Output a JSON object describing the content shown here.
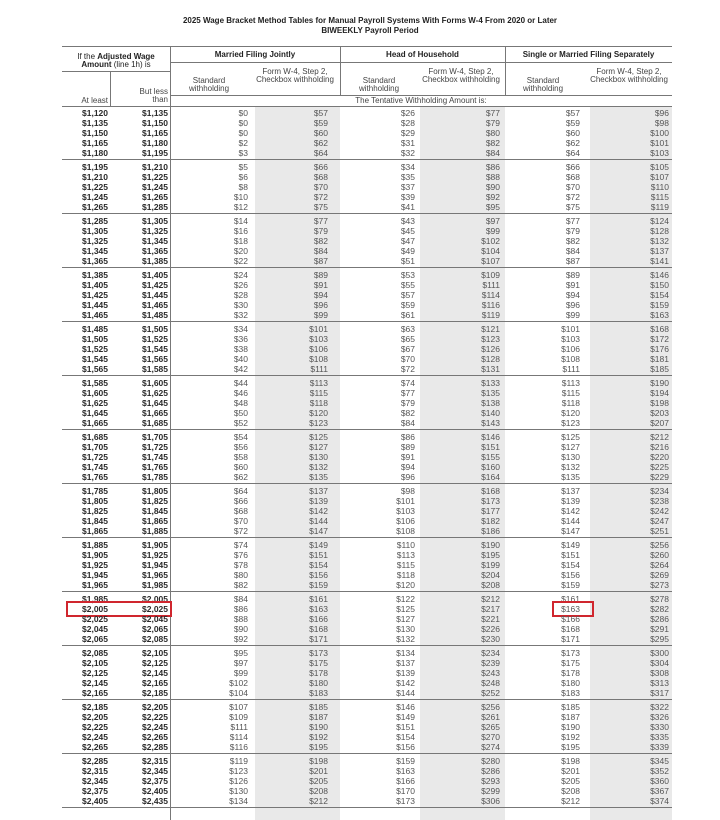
{
  "title": "2025 Wage Bracket Method Tables for Manual Payroll Systems With Forms W-4 From 2020 or Later",
  "subtitle": "BIWEEKLY Payroll Period",
  "header": {
    "wage_prefix": "If the ",
    "wage_bold": "Adjusted Wage Amount",
    "wage_suffix": " (line 1h) is",
    "at_least": "At least",
    "but_less_than": "But less than",
    "groups": [
      "Married Filing Jointly",
      "Head of Household",
      "Single or Married Filing Separately"
    ],
    "standard": "Standard withholding",
    "checkbox": "Form W-4, Step 2, Checkbox withholding",
    "tentative": "The Tentative Withholding Amount is:"
  },
  "colors": {
    "highlight": "#d0262e",
    "shade": "#e9e9e9"
  },
  "highlights": [
    {
      "group": 9,
      "row": 1,
      "columns": [
        0,
        1
      ]
    },
    {
      "group": 9,
      "row": 1,
      "columns": [
        6
      ]
    }
  ],
  "rows": [
    [
      [
        "$1,120",
        "$1,135",
        "$0",
        "$57",
        "$26",
        "$77",
        "$57",
        "$96"
      ],
      [
        "$1,135",
        "$1,150",
        "$0",
        "$59",
        "$28",
        "$79",
        "$59",
        "$98"
      ],
      [
        "$1,150",
        "$1,165",
        "$0",
        "$60",
        "$29",
        "$80",
        "$60",
        "$100"
      ],
      [
        "$1,165",
        "$1,180",
        "$2",
        "$62",
        "$31",
        "$82",
        "$62",
        "$101"
      ],
      [
        "$1,180",
        "$1,195",
        "$3",
        "$64",
        "$32",
        "$84",
        "$64",
        "$103"
      ]
    ],
    [
      [
        "$1,195",
        "$1,210",
        "$5",
        "$66",
        "$34",
        "$86",
        "$66",
        "$105"
      ],
      [
        "$1,210",
        "$1,225",
        "$6",
        "$68",
        "$35",
        "$88",
        "$68",
        "$107"
      ],
      [
        "$1,225",
        "$1,245",
        "$8",
        "$70",
        "$37",
        "$90",
        "$70",
        "$110"
      ],
      [
        "$1,245",
        "$1,265",
        "$10",
        "$72",
        "$39",
        "$92",
        "$72",
        "$115"
      ],
      [
        "$1,265",
        "$1,285",
        "$12",
        "$75",
        "$41",
        "$95",
        "$75",
        "$119"
      ]
    ],
    [
      [
        "$1,285",
        "$1,305",
        "$14",
        "$77",
        "$43",
        "$97",
        "$77",
        "$124"
      ],
      [
        "$1,305",
        "$1,325",
        "$16",
        "$79",
        "$45",
        "$99",
        "$79",
        "$128"
      ],
      [
        "$1,325",
        "$1,345",
        "$18",
        "$82",
        "$47",
        "$102",
        "$82",
        "$132"
      ],
      [
        "$1,345",
        "$1,365",
        "$20",
        "$84",
        "$49",
        "$104",
        "$84",
        "$137"
      ],
      [
        "$1,365",
        "$1,385",
        "$22",
        "$87",
        "$51",
        "$107",
        "$87",
        "$141"
      ]
    ],
    [
      [
        "$1,385",
        "$1,405",
        "$24",
        "$89",
        "$53",
        "$109",
        "$89",
        "$146"
      ],
      [
        "$1,405",
        "$1,425",
        "$26",
        "$91",
        "$55",
        "$111",
        "$91",
        "$150"
      ],
      [
        "$1,425",
        "$1,445",
        "$28",
        "$94",
        "$57",
        "$114",
        "$94",
        "$154"
      ],
      [
        "$1,445",
        "$1,465",
        "$30",
        "$96",
        "$59",
        "$116",
        "$96",
        "$159"
      ],
      [
        "$1,465",
        "$1,485",
        "$32",
        "$99",
        "$61",
        "$119",
        "$99",
        "$163"
      ]
    ],
    [
      [
        "$1,485",
        "$1,505",
        "$34",
        "$101",
        "$63",
        "$121",
        "$101",
        "$168"
      ],
      [
        "$1,505",
        "$1,525",
        "$36",
        "$103",
        "$65",
        "$123",
        "$103",
        "$172"
      ],
      [
        "$1,525",
        "$1,545",
        "$38",
        "$106",
        "$67",
        "$126",
        "$106",
        "$176"
      ],
      [
        "$1,545",
        "$1,565",
        "$40",
        "$108",
        "$70",
        "$128",
        "$108",
        "$181"
      ],
      [
        "$1,565",
        "$1,585",
        "$42",
        "$111",
        "$72",
        "$131",
        "$111",
        "$185"
      ]
    ],
    [
      [
        "$1,585",
        "$1,605",
        "$44",
        "$113",
        "$74",
        "$133",
        "$113",
        "$190"
      ],
      [
        "$1,605",
        "$1,625",
        "$46",
        "$115",
        "$77",
        "$135",
        "$115",
        "$194"
      ],
      [
        "$1,625",
        "$1,645",
        "$48",
        "$118",
        "$79",
        "$138",
        "$118",
        "$198"
      ],
      [
        "$1,645",
        "$1,665",
        "$50",
        "$120",
        "$82",
        "$140",
        "$120",
        "$203"
      ],
      [
        "$1,665",
        "$1,685",
        "$52",
        "$123",
        "$84",
        "$143",
        "$123",
        "$207"
      ]
    ],
    [
      [
        "$1,685",
        "$1,705",
        "$54",
        "$125",
        "$86",
        "$146",
        "$125",
        "$212"
      ],
      [
        "$1,705",
        "$1,725",
        "$56",
        "$127",
        "$89",
        "$151",
        "$127",
        "$216"
      ],
      [
        "$1,725",
        "$1,745",
        "$58",
        "$130",
        "$91",
        "$155",
        "$130",
        "$220"
      ],
      [
        "$1,745",
        "$1,765",
        "$60",
        "$132",
        "$94",
        "$160",
        "$132",
        "$225"
      ],
      [
        "$1,765",
        "$1,785",
        "$62",
        "$135",
        "$96",
        "$164",
        "$135",
        "$229"
      ]
    ],
    [
      [
        "$1,785",
        "$1,805",
        "$64",
        "$137",
        "$98",
        "$168",
        "$137",
        "$234"
      ],
      [
        "$1,805",
        "$1,825",
        "$66",
        "$139",
        "$101",
        "$173",
        "$139",
        "$238"
      ],
      [
        "$1,825",
        "$1,845",
        "$68",
        "$142",
        "$103",
        "$177",
        "$142",
        "$242"
      ],
      [
        "$1,845",
        "$1,865",
        "$70",
        "$144",
        "$106",
        "$182",
        "$144",
        "$247"
      ],
      [
        "$1,865",
        "$1,885",
        "$72",
        "$147",
        "$108",
        "$186",
        "$147",
        "$251"
      ]
    ],
    [
      [
        "$1,885",
        "$1,905",
        "$74",
        "$149",
        "$110",
        "$190",
        "$149",
        "$256"
      ],
      [
        "$1,905",
        "$1,925",
        "$76",
        "$151",
        "$113",
        "$195",
        "$151",
        "$260"
      ],
      [
        "$1,925",
        "$1,945",
        "$78",
        "$154",
        "$115",
        "$199",
        "$154",
        "$264"
      ],
      [
        "$1,945",
        "$1,965",
        "$80",
        "$156",
        "$118",
        "$204",
        "$156",
        "$269"
      ],
      [
        "$1,965",
        "$1,985",
        "$82",
        "$159",
        "$120",
        "$208",
        "$159",
        "$273"
      ]
    ],
    [
      [
        "$1,985",
        "$2,005",
        "$84",
        "$161",
        "$122",
        "$212",
        "$161",
        "$278"
      ],
      [
        "$2,005",
        "$2,025",
        "$86",
        "$163",
        "$125",
        "$217",
        "$163",
        "$282"
      ],
      [
        "$2,025",
        "$2,045",
        "$88",
        "$166",
        "$127",
        "$221",
        "$166",
        "$286"
      ],
      [
        "$2,045",
        "$2,065",
        "$90",
        "$168",
        "$130",
        "$226",
        "$168",
        "$291"
      ],
      [
        "$2,065",
        "$2,085",
        "$92",
        "$171",
        "$132",
        "$230",
        "$171",
        "$295"
      ]
    ],
    [
      [
        "$2,085",
        "$2,105",
        "$95",
        "$173",
        "$134",
        "$234",
        "$173",
        "$300"
      ],
      [
        "$2,105",
        "$2,125",
        "$97",
        "$175",
        "$137",
        "$239",
        "$175",
        "$304"
      ],
      [
        "$2,125",
        "$2,145",
        "$99",
        "$178",
        "$139",
        "$243",
        "$178",
        "$308"
      ],
      [
        "$2,145",
        "$2,165",
        "$102",
        "$180",
        "$142",
        "$248",
        "$180",
        "$313"
      ],
      [
        "$2,165",
        "$2,185",
        "$104",
        "$183",
        "$144",
        "$252",
        "$183",
        "$317"
      ]
    ],
    [
      [
        "$2,185",
        "$2,205",
        "$107",
        "$185",
        "$146",
        "$256",
        "$185",
        "$322"
      ],
      [
        "$2,205",
        "$2,225",
        "$109",
        "$187",
        "$149",
        "$261",
        "$187",
        "$326"
      ],
      [
        "$2,225",
        "$2,245",
        "$111",
        "$190",
        "$151",
        "$265",
        "$190",
        "$330"
      ],
      [
        "$2,245",
        "$2,265",
        "$114",
        "$192",
        "$154",
        "$270",
        "$192",
        "$335"
      ],
      [
        "$2,265",
        "$2,285",
        "$116",
        "$195",
        "$156",
        "$274",
        "$195",
        "$339"
      ]
    ],
    [
      [
        "$2,285",
        "$2,315",
        "$119",
        "$198",
        "$159",
        "$280",
        "$198",
        "$345"
      ],
      [
        "$2,315",
        "$2,345",
        "$123",
        "$201",
        "$163",
        "$286",
        "$201",
        "$352"
      ],
      [
        "$2,345",
        "$2,375",
        "$126",
        "$205",
        "$166",
        "$293",
        "$205",
        "$360"
      ],
      [
        "$2,375",
        "$2,405",
        "$130",
        "$208",
        "$170",
        "$299",
        "$208",
        "$367"
      ],
      [
        "$2,405",
        "$2,435",
        "$134",
        "$212",
        "$173",
        "$306",
        "$212",
        "$374"
      ]
    ]
  ]
}
